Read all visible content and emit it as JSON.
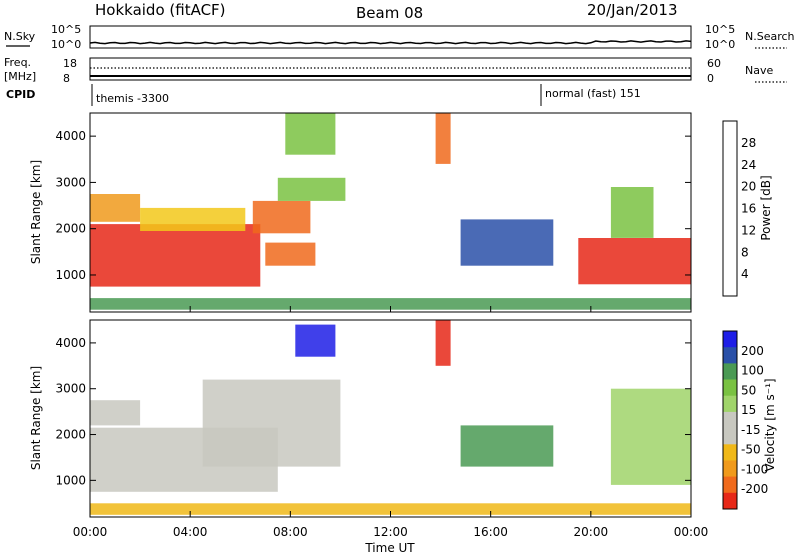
{
  "header": {
    "station": "Hokkaido (fitACF)",
    "beam": "Beam 08",
    "date": "20/Jan/2013"
  },
  "top_panel": {
    "left_label": "N.Sky",
    "right_label": "N.Search",
    "ticks_left": [
      "10^5",
      "10^0"
    ],
    "ticks_right": [
      "10^5",
      "10^0"
    ]
  },
  "freq_panel": {
    "left_label_1": "Freq.",
    "left_label_2": "[MHz]",
    "right_label": "Nave",
    "ticks_left": [
      "18",
      "8"
    ],
    "ticks_right": [
      "60",
      "0"
    ]
  },
  "cpid_panel": {
    "label": "CPID",
    "segments": [
      {
        "name": "themis",
        "text": "themis -3300"
      },
      {
        "name": "normal",
        "text": "normal (fast) 151"
      }
    ]
  },
  "colors": {
    "power_scale": [
      "#1e1ee6",
      "#2a50a8",
      "#4a9a54",
      "#7ac242",
      "#f2c81a",
      "#f09a1c",
      "#f06a1c",
      "#e62818"
    ],
    "velocity_scale": [
      "#e62818",
      "#f06a1c",
      "#f09a1c",
      "#f0b818",
      "#c8c8c0",
      "#c8c8c0",
      "#a0d46a",
      "#7ac242",
      "#4a9a54",
      "#2a50a8",
      "#1e1ee6"
    ],
    "ground_scatter": "#bfbfb8"
  },
  "chart_data": [
    {
      "type": "heatmap",
      "name": "power",
      "ylabel": "Slant Range [km]",
      "ylim": [
        200,
        4500
      ],
      "yticks": [
        "1000",
        "2000",
        "3000",
        "4000"
      ],
      "colorbar_label": "Power [dB]",
      "colorbar_ticks": [
        "4",
        "8",
        "12",
        "16",
        "20",
        "24",
        "28"
      ],
      "regions": [
        {
          "t0": 0.0,
          "t1": 6.8,
          "r0": 750,
          "r1": 2100,
          "level": 7
        },
        {
          "t0": 0.0,
          "t1": 2.0,
          "r0": 2150,
          "r1": 2750,
          "level": 5
        },
        {
          "t0": 2.0,
          "t1": 6.2,
          "r0": 1950,
          "r1": 2450,
          "level": 4
        },
        {
          "t0": 6.5,
          "t1": 8.8,
          "r0": 1900,
          "r1": 2600,
          "level": 6
        },
        {
          "t0": 7.0,
          "t1": 9.0,
          "r0": 1200,
          "r1": 1700,
          "level": 6
        },
        {
          "t0": 7.5,
          "t1": 10.2,
          "r0": 2600,
          "r1": 3100,
          "level": 3
        },
        {
          "t0": 7.8,
          "t1": 9.8,
          "r0": 3600,
          "r1": 4500,
          "level": 3
        },
        {
          "t0": 13.8,
          "t1": 14.4,
          "r0": 3400,
          "r1": 4500,
          "level": 6
        },
        {
          "t0": 14.8,
          "t1": 18.5,
          "r0": 1200,
          "r1": 2200,
          "level": 1
        },
        {
          "t0": 19.5,
          "t1": 24.0,
          "r0": 800,
          "r1": 1800,
          "level": 7
        },
        {
          "t0": 20.8,
          "t1": 22.5,
          "r0": 1800,
          "r1": 2900,
          "level": 3
        },
        {
          "t0": 0.0,
          "t1": 24.0,
          "r0": 250,
          "r1": 500,
          "level": 2
        }
      ],
      "xlim": [
        "00:00",
        "00:00"
      ]
    },
    {
      "type": "heatmap",
      "name": "velocity",
      "ylabel": "Slant Range [km]",
      "ylim": [
        200,
        4500
      ],
      "yticks": [
        "1000",
        "2000",
        "3000",
        "4000"
      ],
      "colorbar_label": "Velocity [m s⁻¹]",
      "colorbar_ticks": [
        "200",
        "100",
        "50",
        "15",
        "-15",
        "-50",
        "-100",
        "-200"
      ],
      "regions": [
        {
          "t0": 0.0,
          "t1": 7.5,
          "r0": 750,
          "r1": 2150,
          "level": 4
        },
        {
          "t0": 0.0,
          "t1": 2.0,
          "r0": 2200,
          "r1": 2750,
          "level": 4
        },
        {
          "t0": 4.5,
          "t1": 10.0,
          "r0": 1300,
          "r1": 3200,
          "level": 4
        },
        {
          "t0": 8.2,
          "t1": 9.8,
          "r0": 3700,
          "r1": 4400,
          "level": 10
        },
        {
          "t0": 13.8,
          "t1": 14.4,
          "r0": 3500,
          "r1": 4500,
          "level": 0
        },
        {
          "t0": 14.8,
          "t1": 18.5,
          "r0": 1300,
          "r1": 2200,
          "level": 8
        },
        {
          "t0": 20.8,
          "t1": 24.0,
          "r0": 900,
          "r1": 3000,
          "level": 6
        },
        {
          "t0": 0.0,
          "t1": 24.0,
          "r0": 250,
          "r1": 500,
          "level": 3
        }
      ]
    }
  ],
  "xaxis": {
    "label": "Time UT",
    "ticks": [
      "00:00",
      "04:00",
      "08:00",
      "12:00",
      "16:00",
      "20:00",
      "00:00"
    ]
  }
}
